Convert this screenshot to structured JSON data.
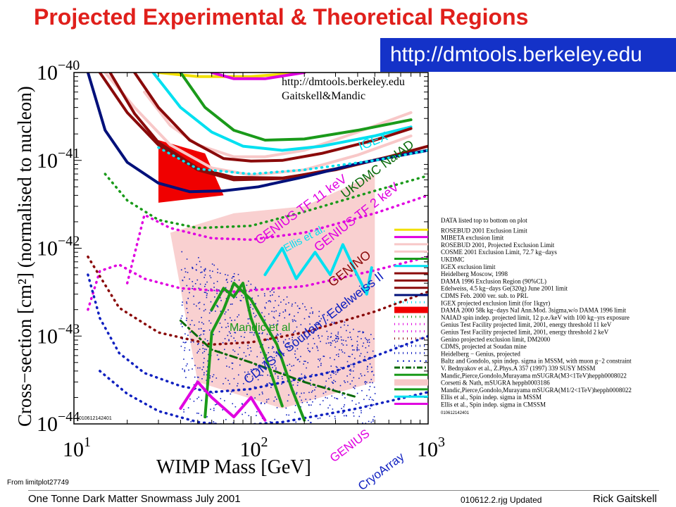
{
  "slide": {
    "title": "Projected Experimental & Theoretical Regions",
    "url_banner": "http://dmtools.berkeley.edu",
    "source_note": "From limitplot27749",
    "footer_left": "One Tonne Dark Matter Snowmass July 2001",
    "footer_mid": "010612.2.rjg Updated",
    "footer_right": "Rick Gaitskell"
  },
  "colors": {
    "title": "#e0201c",
    "banner": "#1432c8",
    "yellow": "#f2e000",
    "magenta": "#e000e0",
    "pink": "#f8c8c8",
    "green": "#1a9a1a",
    "darkgreen": "#0a6a0a",
    "cyan": "#00e0f0",
    "darkred": "#8a0a0a",
    "navy": "#00107a",
    "red": "#f00000",
    "blue": "#1020c0"
  },
  "chart_data": {
    "type": "line",
    "xscale": "log",
    "yscale": "log",
    "xlim": [
      10,
      1000
    ],
    "ylim": [
      1e-44,
      1e-40
    ],
    "xlabel": "WIMP Mass [GeV]",
    "ylabel": "Cross−section [cm²] (normalised to nucleon)",
    "x_ticks": [
      {
        "label": "10",
        "exp": "1",
        "value": 10
      },
      {
        "label": "10",
        "exp": "2",
        "value": 100
      },
      {
        "label": "10",
        "exp": "3",
        "value": 1000
      }
    ],
    "y_ticks": [
      {
        "label": "10",
        "exp": "−40",
        "value": 1e-40
      },
      {
        "label": "10",
        "exp": "−41",
        "value": 1e-41
      },
      {
        "label": "10",
        "exp": "−42",
        "value": 1e-42
      },
      {
        "label": "10",
        "exp": "−43",
        "value": 1e-43
      },
      {
        "label": "10",
        "exp": "−44",
        "value": 1e-44
      }
    ],
    "plot_header": [
      "http://dmtools.berkeley.edu",
      "Gaitskell&Mandic"
    ],
    "plot_id": "010612142401",
    "legend_id": "010612142401",
    "legend_placement": "right",
    "legend_title": "DATA listed top to bottom on plot",
    "series": [
      {
        "name": "ROSEBUD 2001 Exclusion Limit",
        "color": "yellow",
        "style": "solid",
        "x": [
          30,
          50,
          100,
          200
        ],
        "y": [
          1e-40,
          9e-41,
          9e-41,
          1e-40
        ]
      },
      {
        "name": "MIBETA exclusion limit",
        "color": "magenta",
        "style": "solid",
        "x": [
          60,
          80,
          120,
          200
        ],
        "y": [
          1e-40,
          8.5e-41,
          8.5e-41,
          1e-40
        ]
      },
      {
        "name": "ROSEBUD 2001, Projected Exclusion Limit",
        "color": "pink",
        "style": "solid",
        "x": [
          25,
          35,
          50,
          80,
          120,
          200,
          400,
          800
        ],
        "y": [
          6e-41,
          2.5e-41,
          1.5e-41,
          1.1e-41,
          1.1e-41,
          1.3e-41,
          2.1e-41,
          3.5e-41
        ]
      },
      {
        "name": "COSME 2001 Exclusion Limit, 72.7 kg−days",
        "color": "pink",
        "style": "solid",
        "x": [
          15,
          22,
          35,
          60,
          100,
          200,
          400,
          800
        ],
        "y": [
          1e-40,
          4e-41,
          1.5e-41,
          8.2e-42,
          6.8e-42,
          7.8e-42,
          1.15e-41,
          1.9e-41
        ]
      },
      {
        "name": "UKDMC",
        "color": "green",
        "style": "solid",
        "x": [
          40,
          55,
          80,
          120,
          200,
          400,
          800
        ],
        "y": [
          1e-40,
          4e-41,
          2.2e-41,
          1.7e-41,
          1.75e-41,
          2.2e-41,
          2.9e-41
        ]
      },
      {
        "name": "IGEX exclusion limit",
        "color": "cyan",
        "style": "solid",
        "x": [
          28,
          40,
          60,
          90,
          150,
          250,
          500,
          800
        ],
        "y": [
          1e-40,
          4e-41,
          2.1e-41,
          1.45e-41,
          1.3e-41,
          1.45e-41,
          1.9e-41,
          2.4e-41
        ]
      },
      {
        "name": "Heidelberg Moscow, 1998",
        "color": "darkred",
        "style": "solid",
        "x": [
          22,
          30,
          45,
          70,
          100,
          150,
          250,
          500,
          800
        ],
        "y": [
          1e-40,
          4e-41,
          1.7e-41,
          1.05e-41,
          9.8e-42,
          1e-41,
          1.2e-41,
          1.7e-41,
          2.3e-41
        ]
      },
      {
        "name": "DAMA 1996 Exclusion Region (90%CL)",
        "color": "darkred",
        "style": "solid",
        "x": [
          14,
          20,
          30,
          50,
          80,
          150,
          300,
          800
        ],
        "y": [
          1e-40,
          3.5e-41,
          1.5e-41,
          7.8e-42,
          6e-42,
          6.2e-42,
          8e-42,
          1.25e-41
        ]
      },
      {
        "name": "Edelweiss, 4.5 kg−days Ge(320g) June 2001 limit",
        "color": "darkred",
        "style": "solid",
        "x": [
          16,
          22,
          30,
          50,
          80,
          150,
          300,
          600,
          1000
        ],
        "y": [
          1e-40,
          3.4e-41,
          1.6e-41,
          8.1e-42,
          6.4e-42,
          6.3e-42,
          7.8e-42,
          1.1e-41,
          1.45e-41
        ]
      },
      {
        "name": "CDMS Feb. 2000 ver. sub. to PRL",
        "color": "navy",
        "style": "solid",
        "x": [
          12,
          15,
          20,
          30,
          45,
          70,
          110,
          200,
          400,
          800,
          1000
        ],
        "y": [
          1e-40,
          2.2e-41,
          9.5e-42,
          5.5e-42,
          4.4e-42,
          4.5e-42,
          5e-42,
          6.5e-42,
          9.2e-42,
          1.2e-41,
          1.3e-41
        ]
      },
      {
        "name": "IGEX projected exclusion limit (for 1kgyr)",
        "color": "cyan",
        "style": "dotted",
        "x": [
          30,
          50,
          100,
          200,
          500,
          1000
        ],
        "y": [
          1.4e-41,
          8e-42,
          7e-42,
          7.8e-42,
          1e-41,
          1.3e-41
        ]
      },
      {
        "name": "DAMA 2000 58k kg−days NaI Ann.Mod. 3sigma,w/o DAMA 1996 limit",
        "color": "red",
        "style": "region",
        "x": [
          30,
          55,
          70,
          30
        ],
        "y": [
          1.7e-41,
          1.2e-41,
          4e-42,
          3.3e-42
        ]
      },
      {
        "name": "NAIAD spin indep. projected limit, 12 p.e./keV with 100 kg−yrs exposure",
        "color": "green",
        "style": "dotted",
        "x": [
          15,
          20,
          30,
          50,
          100,
          200,
          500,
          1000
        ],
        "y": [
          7e-42,
          3.5e-42,
          2.1e-42,
          1.7e-42,
          1.8e-42,
          2.6e-42,
          4.5e-42,
          6.7e-42
        ]
      },
      {
        "name": "Genius Test Facility projected limit, 2001, energy threshold 11 keV",
        "color": "magenta",
        "style": "dotted",
        "x": [
          20,
          25,
          35,
          60,
          100,
          200,
          500,
          1000
        ],
        "y": [
          4e-43,
          2.4e-42,
          1.7e-42,
          1.3e-42,
          1.25e-42,
          1.5e-42,
          2.5e-42,
          4e-42
        ]
      },
      {
        "name": "Genius Test Facility projected limit, 2001, energy threshold 2 keV",
        "color": "magenta",
        "style": "dotted",
        "x": [
          12,
          14,
          18,
          25,
          40,
          80,
          200,
          500,
          1000
        ],
        "y": [
          2e-43,
          5.5e-43,
          6.5e-43,
          4.5e-43,
          3.5e-43,
          3.2e-43,
          3.7e-43,
          5.6e-43,
          8e-43
        ]
      },
      {
        "name": "Genino projected exclusion limit, DM2000",
        "color": "darkred",
        "style": "dotted",
        "x": [
          12,
          18,
          30,
          60,
          100,
          200,
          500,
          1000
        ],
        "y": [
          8e-43,
          2.1e-43,
          1.1e-43,
          8e-44,
          8.5e-44,
          1.1e-43,
          1.9e-43,
          3.2e-43
        ]
      },
      {
        "name": "CDMS, projected at Soudan mine",
        "color": "blue",
        "style": "dotted",
        "x": [
          12,
          14,
          18,
          25,
          40,
          60,
          100,
          300,
          1000
        ],
        "y": [
          5e-43,
          1.6e-43,
          6.4e-44,
          3.8e-44,
          2.7e-44,
          2.3e-44,
          2.5e-44,
          4e-44,
          1e-43
        ]
      },
      {
        "name": "Heidelberg − Genius, projected",
        "color": "blue",
        "style": "dotted",
        "x": [
          14,
          20,
          30,
          50,
          80,
          150,
          400,
          1000
        ],
        "y": [
          4e-44,
          2.2e-44,
          1.4e-44,
          1.05e-44,
          9.5e-45,
          1.05e-44,
          1.5e-44,
          2.3e-44
        ]
      },
      {
        "name": "Baltz and Gondolo, spin indep. sigma in MSSM, with muon g−2 constraint",
        "color": "blue",
        "style": "scatter",
        "x": [
          45,
          60,
          80,
          120,
          200,
          400
        ],
        "y": [
          1e-42,
          3e-43,
          5e-44,
          2e-44,
          3e-44,
          1e-44
        ]
      },
      {
        "name": "V. Bednyakov et al., Z.Phys.A 357 (1997) 339 SUSY MSSM",
        "color": "darkgreen",
        "style": "dashdot",
        "x": [
          40,
          60,
          100,
          200,
          400
        ],
        "y": [
          1.5e-43,
          7e-44,
          5e-44,
          3e-44,
          2e-44
        ]
      },
      {
        "name": "Mandic,Pierce,Gondolo,Murayama mSUGRA(M3<1TeV)hepph0008022",
        "color": "green",
        "style": "solid",
        "x": [
          55,
          60,
          70,
          80,
          100,
          140,
          170,
          200
        ],
        "y": [
          1.2e-44,
          1.1e-43,
          2e-43,
          4e-43,
          2.6e-43,
          8e-44,
          2.5e-44,
          1.1e-44
        ]
      },
      {
        "name": "Corsetti & Nath, mSUGRA hepph0003186",
        "color": "pink",
        "style": "region",
        "x": [
          35,
          80,
          200,
          500,
          500,
          150,
          50
        ],
        "y": [
          1.5e-42,
          2.5e-42,
          3e-42,
          7e-42,
          3e-44,
          1.5e-44,
          3e-44
        ]
      },
      {
        "name": "Mandic,Pierce,Gondolo,Murayama mSUGRA(M1/2<1TeV)hepph0008022",
        "color": "green",
        "style": "solid",
        "x": [
          60,
          70,
          80,
          90,
          100,
          120,
          150
        ],
        "y": [
          2e-43,
          3.5e-43,
          2.8e-43,
          4e-43,
          1.6e-43,
          6e-44,
          1.6e-44
        ]
      },
      {
        "name": "Ellis et al., Spin indep. sigma in MSSM",
        "color": "cyan",
        "style": "solid",
        "x": [
          120,
          150,
          180,
          230,
          280,
          330,
          380,
          450,
          480
        ],
        "y": [
          5e-43,
          1e-42,
          4.5e-43,
          9e-43,
          5e-43,
          1.1e-42,
          6e-43,
          3e-43,
          6e-43
        ]
      },
      {
        "name": "Ellis et al., Spin indep. sigma in CMSSM",
        "color": "magenta",
        "style": "solid",
        "x": [
          40,
          50,
          60,
          80,
          100,
          120
        ],
        "y": [
          1.5e-44,
          3e-44,
          2e-44,
          1.2e-44,
          2e-44,
          1.1e-44
        ]
      }
    ],
    "annotations": [
      {
        "text": "IGEX",
        "color": "cyan"
      },
      {
        "text": "UKDMC NaIAD",
        "color": "darkgreen"
      },
      {
        "text": "GENIUS TF 11 keV",
        "color": "magenta"
      },
      {
        "text": "GENIUS TF 2 keV",
        "color": "magenta"
      },
      {
        "text": "GENINO",
        "color": "darkred"
      },
      {
        "text": "Ellis et al.",
        "color": "cyan"
      },
      {
        "text": "Mandic et al",
        "color": "green"
      },
      {
        "text": "CDMS II Soudan / Edelweiss II",
        "color": "blue"
      },
      {
        "text": "GENIUS",
        "color": "magenta"
      },
      {
        "text": "CryoArray",
        "color": "blue"
      }
    ]
  }
}
